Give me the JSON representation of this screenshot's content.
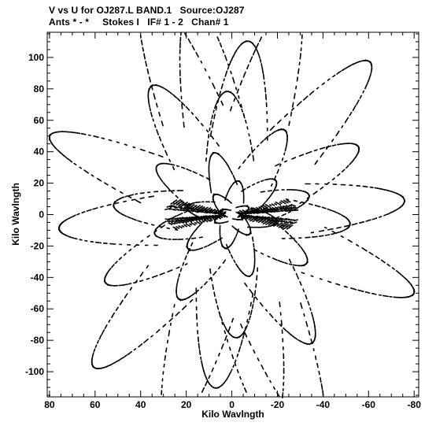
{
  "header": {
    "title_line1": "V vs U for OJ287.L BAND.1   Source:OJ287",
    "title_line2": "Ants * - *     Stokes I   IF# 1 - 2   Chan# 1"
  },
  "colors": {
    "background": "#ffffff",
    "foreground": "#000000"
  },
  "chart_data": {
    "type": "scatter",
    "xlabel": "Kilo Wavlngth",
    "ylabel": "Kilo Wavlngth",
    "xlim": [
      81,
      -82
    ],
    "ylim": [
      -116,
      116
    ],
    "x_reversed": true,
    "x_ticks": [
      80,
      60,
      40,
      20,
      0,
      -20,
      -40,
      -60,
      -80
    ],
    "x_tick_labels": [
      "80",
      "60",
      "40",
      "20",
      "0",
      "-20",
      "-40",
      "-60",
      "-80"
    ],
    "y_ticks": [
      100,
      80,
      60,
      40,
      20,
      0,
      -20,
      -40,
      -60,
      -80,
      -100
    ],
    "y_tick_labels": [
      "100",
      "80",
      "60",
      "40",
      "20",
      "0",
      "-20",
      "-40",
      "-60",
      "-80",
      "-100"
    ],
    "grid": false,
    "marker": "small black dashes (uv tracks, symmetric about origin)",
    "tracks": [
      {
        "radius": 5,
        "angle_deg": 20,
        "elongation": 0.35
      },
      {
        "radius": 8,
        "angle_deg": 155,
        "elongation": 0.3
      },
      {
        "radius": 12,
        "angle_deg": 50,
        "elongation": 0.3
      },
      {
        "radius": 16,
        "angle_deg": 100,
        "elongation": 0.28
      },
      {
        "radius": 20,
        "angle_deg": 10,
        "elongation": 0.25
      },
      {
        "radius": 25,
        "angle_deg": 140,
        "elongation": 0.25
      },
      {
        "radius": 30,
        "angle_deg": 75,
        "elongation": 0.22
      },
      {
        "radius": 35,
        "angle_deg": 165,
        "elongation": 0.22
      },
      {
        "radius": 40,
        "angle_deg": 35,
        "elongation": 0.22
      },
      {
        "radius": 46,
        "angle_deg": 120,
        "elongation": 0.2
      },
      {
        "radius": 52,
        "angle_deg": 5,
        "elongation": 0.2
      },
      {
        "radius": 58,
        "angle_deg": 88,
        "elongation": 0.2
      },
      {
        "radius": 64,
        "angle_deg": 150,
        "elongation": 0.18
      },
      {
        "radius": 70,
        "angle_deg": 60,
        "elongation": 0.18
      },
      {
        "radius": 76,
        "angle_deg": 175,
        "elongation": 0.17
      },
      {
        "radius": 82,
        "angle_deg": 95,
        "elongation": 0.17
      },
      {
        "radius": 88,
        "angle_deg": 25,
        "elongation": 0.15
      },
      {
        "radius": 94,
        "angle_deg": 130,
        "elongation": 0.15
      },
      {
        "radius": 100,
        "angle_deg": 80,
        "elongation": 0.15
      },
      {
        "radius": 106,
        "angle_deg": 105,
        "elongation": 0.14
      },
      {
        "radius": 112,
        "angle_deg": 70,
        "elongation": 0.14
      }
    ],
    "radial_lines_deg": [
      12,
      18,
      25,
      160,
      165,
      170,
      30,
      150
    ]
  }
}
